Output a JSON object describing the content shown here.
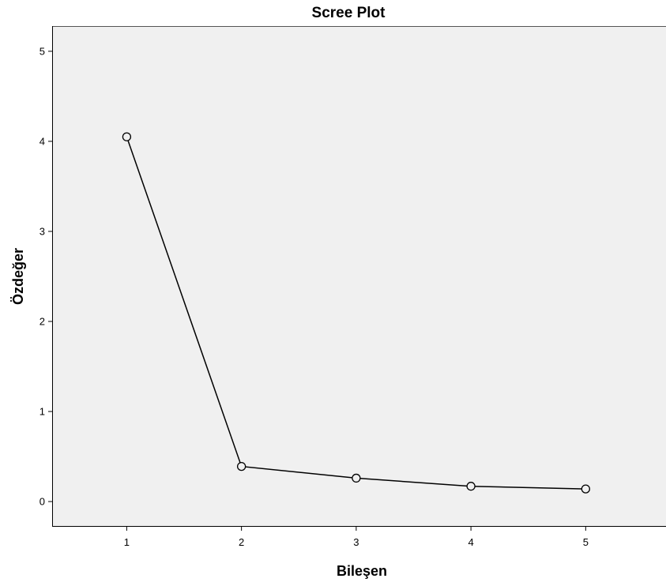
{
  "chart_data": {
    "type": "line",
    "title": "Scree Plot",
    "xlabel": "Bileşen",
    "ylabel": "Özdeğer",
    "x": [
      1,
      2,
      3,
      4,
      5
    ],
    "x_ticks": [
      "1",
      "2",
      "3",
      "4",
      "5"
    ],
    "xlim": [
      0.35,
      5.7
    ],
    "y_ticks": [
      "0",
      "1",
      "2",
      "3",
      "4",
      "5"
    ],
    "ylim": [
      -0.28,
      5.28
    ],
    "series": [
      {
        "values": [
          4.05,
          0.39,
          0.26,
          0.17,
          0.14
        ],
        "marker": "open-circle"
      }
    ],
    "grid": false,
    "legend": "none",
    "colors": {
      "plot_background": "#f0f0f0",
      "line": "#000000",
      "axis": "#000000"
    }
  }
}
